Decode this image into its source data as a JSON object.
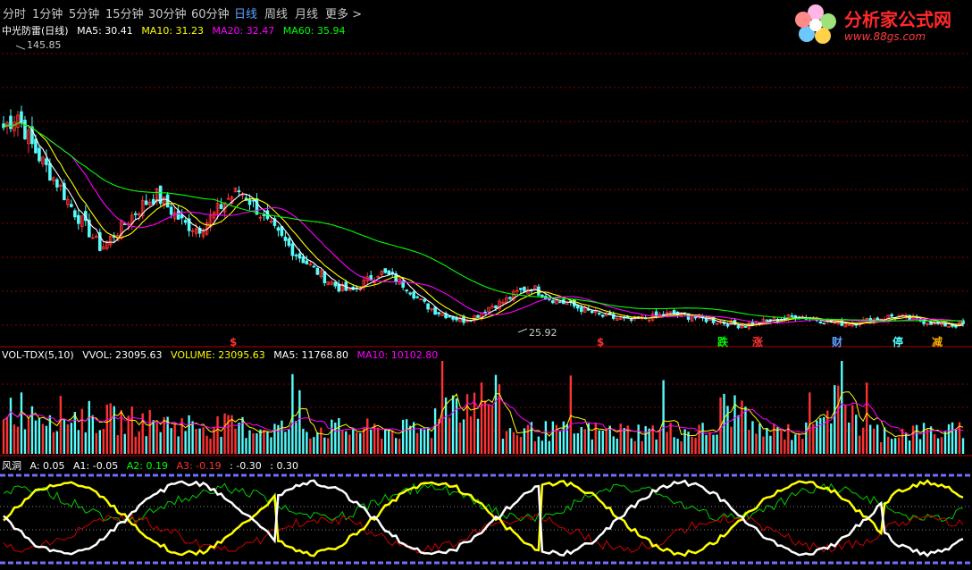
{
  "toolbar": {
    "items": [
      "分时",
      "1分钟",
      "5分钟",
      "15分钟",
      "30分钟",
      "60分钟",
      "日线",
      "周线",
      "月线",
      "更多 >"
    ],
    "active": "日线"
  },
  "logo": {
    "title": "分析家公式网",
    "url": "www.88gs.com"
  },
  "colors": {
    "up": "#ff3232",
    "down": "#54fcfc",
    "ma5": "#ffffff",
    "ma10": "#ffff00",
    "ma20": "#ff00ff",
    "ma60": "#00ff00",
    "gridline": "#8b0000",
    "dash": "#6f6fff"
  },
  "price_panel": {
    "name": "中光防雷(日线)",
    "ma5_label": "MA5: 30.41",
    "ma10_label": "MA10: 31.23",
    "ma20_label": "MA20: 32.47",
    "ma60_label": "MA60: 35.94",
    "high_label": "145.85",
    "low_label": "25.92",
    "markers": [
      "跌",
      "涨",
      "财",
      "停",
      "减"
    ],
    "s_markers": [
      "$",
      "$"
    ]
  },
  "volume_panel": {
    "name": "VOL-TDX(5,10)",
    "vvol_label": "VVOL: 23095.63",
    "volume_label": "VOLUME: 23095.63",
    "ma5_label": "MA5: 11768.80",
    "ma10_label": "MA10: 10102.80"
  },
  "indicator_panel": {
    "name": "风洞",
    "a_label": "A: 0.05",
    "a1_label": "A1: -0.05",
    "a2_label": "A2: 0.19",
    "a3_label": "A3: -0.19",
    "lo_label": ": -0.30",
    "hi_label": ": 0.30"
  },
  "chart_data": [
    {
      "type": "candlestick",
      "title": "中光防雷(日线)",
      "indicators": [
        "MA5",
        "MA10",
        "MA20",
        "MA60"
      ],
      "high_annotation": 145.85,
      "low_annotation": 25.92,
      "ma_last": {
        "MA5": 30.41,
        "MA10": 31.23,
        "MA20": 32.47,
        "MA60": 35.94
      },
      "approx_close": [
        112,
        118,
        105,
        96,
        88,
        78,
        70,
        62,
        68,
        74,
        80,
        84,
        78,
        72,
        70,
        75,
        82,
        86,
        80,
        72,
        66,
        60,
        55,
        50,
        46,
        44,
        48,
        52,
        50,
        46,
        40,
        36,
        34,
        32,
        34,
        38,
        40,
        44,
        46,
        42,
        40,
        38,
        36,
        34,
        33,
        32,
        33,
        34,
        35,
        34,
        33,
        32,
        31,
        30,
        31,
        32,
        33,
        34,
        33,
        32,
        31,
        31,
        32,
        33,
        34,
        33,
        32,
        31,
        30,
        30.41
      ]
    },
    {
      "type": "bar",
      "title": "VOL-TDX(5,10)",
      "last": {
        "VVOL": 23095.63,
        "VOLUME": 23095.63,
        "MA5": 11768.8,
        "MA10": 10102.8
      }
    },
    {
      "type": "line",
      "title": "风洞",
      "last": {
        "A": 0.05,
        "A1": -0.05,
        "A2": 0.19,
        "A3": -0.19
      },
      "reference_lines": [
        -0.3,
        0.3
      ]
    }
  ]
}
